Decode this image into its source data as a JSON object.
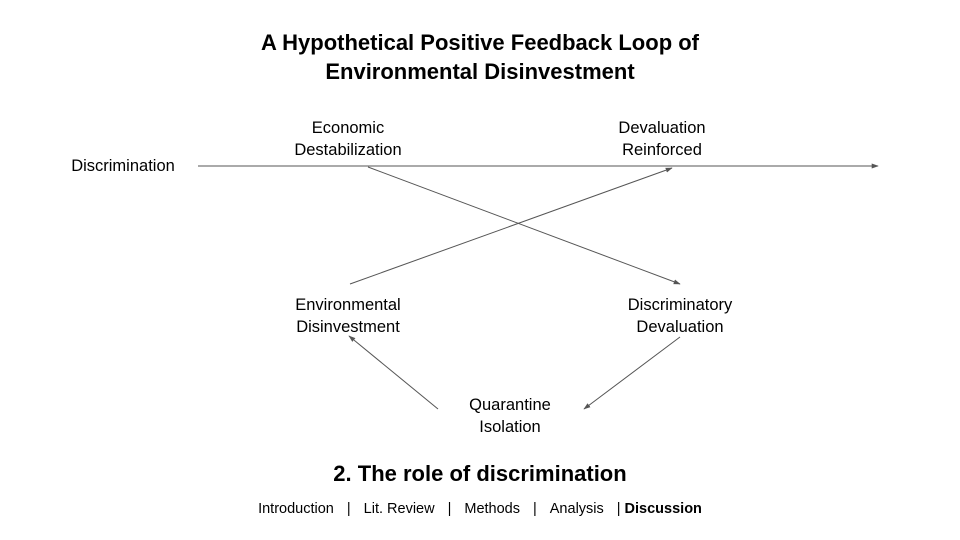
{
  "title": {
    "line1": "A Hypothetical Positive Feedback Loop of",
    "line2": "Environmental Disinvestment"
  },
  "nodes": {
    "discrimination": "Discrimination",
    "economic_destabilization": [
      "Economic",
      "Destabilization"
    ],
    "devaluation_reinforced": [
      "Devaluation",
      "Reinforced"
    ],
    "environmental_disinvestment": [
      "Environmental",
      "Disinvestment"
    ],
    "discriminatory_devaluation": [
      "Discriminatory",
      "Devaluation"
    ],
    "quarantine_isolation": [
      "Quarantine",
      "Isolation"
    ]
  },
  "subtitle": "2. The role of discrimination",
  "nav": {
    "items": [
      "Introduction",
      "Lit. Review",
      "Methods",
      "Analysis"
    ],
    "separator": "|",
    "active": "Discussion"
  },
  "colors": {
    "arrow": "#555555",
    "text": "#000000"
  }
}
